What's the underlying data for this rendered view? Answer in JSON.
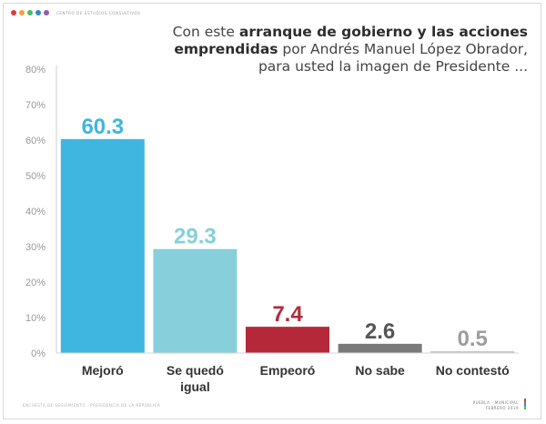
{
  "header": {
    "logo_dots": [
      "#e23b3b",
      "#f1a33a",
      "#4cb86b",
      "#3a86c8",
      "#8e5bb5"
    ],
    "logo_text": "CENTRO DE ESTUDIOS CONSULTIVOS"
  },
  "title": {
    "line1_plain": "Con este ",
    "line1_bold": "arranque de gobierno y las acciones",
    "line2_bold": "emprendidas",
    "line2_plain": " por Andrés Manuel López Obrador,",
    "line3_plain": "para usted la imagen de Presidente ..."
  },
  "chart_data": {
    "type": "bar",
    "categories": [
      "Mejoró",
      "Se quedó igual",
      "Empeoró",
      "No sabe",
      "No contestó"
    ],
    "category_lines": [
      [
        "Mejoró"
      ],
      [
        "Se quedó",
        "igual"
      ],
      [
        "Empeoró"
      ],
      [
        "No sabe"
      ],
      [
        "No contestó"
      ]
    ],
    "values": [
      60.3,
      29.3,
      7.4,
      2.6,
      0.5
    ],
    "value_labels": [
      "60.3",
      "29.3",
      "7.4",
      "2.6",
      "0.5"
    ],
    "bar_colors": [
      "#3fb6e0",
      "#86cfdb",
      "#b5283a",
      "#7a7a7a",
      "#c3c3c3"
    ],
    "label_colors": [
      "#3fb6e0",
      "#86cfdb",
      "#b5283a",
      "#555555",
      "#9d9d9d"
    ],
    "title": "",
    "xlabel": "",
    "ylabel": "",
    "ylim": [
      0,
      80
    ],
    "yticks": [
      "0%",
      "10%",
      "20%",
      "30%",
      "40%",
      "50%",
      "60%",
      "70%",
      "80%"
    ],
    "grid": false,
    "legend": "none"
  },
  "footer": {
    "left_text": "ENCUESTA DE SEGUIMIENTO  ·  PRESIDENCIA DE LA REPÚBLICA",
    "right_line1": "PUEBLA - MUNICIPAL",
    "right_line2": "FEBRERO 2019",
    "bar_colors": [
      "#e23b3b",
      "#3a86c8",
      "#4cb86b"
    ]
  }
}
